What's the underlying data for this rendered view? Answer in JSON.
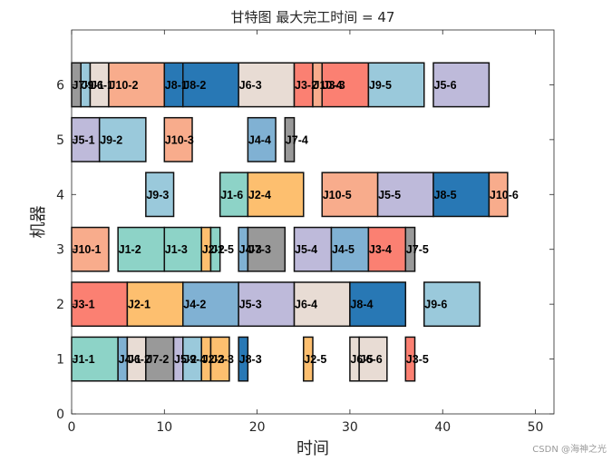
{
  "chart_data": {
    "type": "gantt",
    "title": "甘特图 最大完工时间 = 47",
    "xlabel": "时间",
    "ylabel": "机器",
    "xlim": [
      0,
      52
    ],
    "ylim": [
      0,
      7
    ],
    "xticks": [
      0,
      10,
      20,
      30,
      40,
      50
    ],
    "yticks": [
      0,
      1,
      2,
      3,
      4,
      5,
      6
    ],
    "grid": false,
    "job_colors": {
      "J1": "#8dd3c7",
      "J2": "#fdbf6f",
      "J3": "#fb8072",
      "J4": "#80b1d3",
      "J5": "#bebada",
      "J6": "#e8dcd4",
      "J7": "#999999",
      "J8": "#2878b5",
      "J9": "#9ac9db",
      "J10": "#f8ac8c"
    },
    "tasks": [
      {
        "machine": 6,
        "label": "J7-1",
        "job": "J7",
        "start": 0,
        "end": 1
      },
      {
        "machine": 6,
        "label": "J9-1",
        "job": "J9",
        "start": 1,
        "end": 2
      },
      {
        "machine": 6,
        "label": "J6-1",
        "job": "J6",
        "start": 2,
        "end": 4
      },
      {
        "machine": 6,
        "label": "J10-2",
        "job": "J10",
        "start": 4,
        "end": 10
      },
      {
        "machine": 6,
        "label": "J8-1",
        "job": "J8",
        "start": 10,
        "end": 12
      },
      {
        "machine": 6,
        "label": "J8-2",
        "job": "J8",
        "start": 12,
        "end": 18
      },
      {
        "machine": 6,
        "label": "J6-3",
        "job": "J6",
        "start": 18,
        "end": 24
      },
      {
        "machine": 6,
        "label": "J3-2",
        "job": "J3",
        "start": 24,
        "end": 26
      },
      {
        "machine": 6,
        "label": "J10-4",
        "job": "J10",
        "start": 26,
        "end": 27
      },
      {
        "machine": 6,
        "label": "J3-3",
        "job": "J3",
        "start": 27,
        "end": 32
      },
      {
        "machine": 6,
        "label": "J9-5",
        "job": "J9",
        "start": 32,
        "end": 38
      },
      {
        "machine": 6,
        "label": "J5-6",
        "job": "J5",
        "start": 39,
        "end": 45
      },
      {
        "machine": 5,
        "label": "J5-1",
        "job": "J5",
        "start": 0,
        "end": 3
      },
      {
        "machine": 5,
        "label": "J9-2",
        "job": "J9",
        "start": 3,
        "end": 8
      },
      {
        "machine": 5,
        "label": "J10-3",
        "job": "J10",
        "start": 10,
        "end": 13
      },
      {
        "machine": 5,
        "label": "J4-4",
        "job": "J4",
        "start": 19,
        "end": 22
      },
      {
        "machine": 5,
        "label": "J7-4",
        "job": "J7",
        "start": 23,
        "end": 24
      },
      {
        "machine": 4,
        "label": "J9-3",
        "job": "J9",
        "start": 8,
        "end": 11
      },
      {
        "machine": 4,
        "label": "J1-6",
        "job": "J1",
        "start": 16,
        "end": 19
      },
      {
        "machine": 4,
        "label": "J2-4",
        "job": "J2",
        "start": 19,
        "end": 25
      },
      {
        "machine": 4,
        "label": "J10-5",
        "job": "J10",
        "start": 27,
        "end": 33
      },
      {
        "machine": 4,
        "label": "J5-5",
        "job": "J5",
        "start": 33,
        "end": 39
      },
      {
        "machine": 4,
        "label": "J8-5",
        "job": "J8",
        "start": 39,
        "end": 45
      },
      {
        "machine": 4,
        "label": "J10-6",
        "job": "J10",
        "start": 45,
        "end": 47
      },
      {
        "machine": 3,
        "label": "J10-1",
        "job": "J10",
        "start": 0,
        "end": 4
      },
      {
        "machine": 3,
        "label": "J1-2",
        "job": "J1",
        "start": 5,
        "end": 10
      },
      {
        "machine": 3,
        "label": "J1-3",
        "job": "J1",
        "start": 10,
        "end": 14
      },
      {
        "machine": 3,
        "label": "J2-2",
        "job": "J2",
        "start": 14,
        "end": 15
      },
      {
        "machine": 3,
        "label": "J1-5",
        "job": "J1",
        "start": 15,
        "end": 16
      },
      {
        "machine": 3,
        "label": "J4-3",
        "job": "J4",
        "start": 18,
        "end": 19
      },
      {
        "machine": 3,
        "label": "J7-3",
        "job": "J7",
        "start": 19,
        "end": 23
      },
      {
        "machine": 3,
        "label": "J5-4",
        "job": "J5",
        "start": 24,
        "end": 28
      },
      {
        "machine": 3,
        "label": "J4-5",
        "job": "J4",
        "start": 28,
        "end": 32
      },
      {
        "machine": 3,
        "label": "J3-4",
        "job": "J3",
        "start": 32,
        "end": 36
      },
      {
        "machine": 3,
        "label": "J7-5",
        "job": "J7",
        "start": 36,
        "end": 37
      },
      {
        "machine": 2,
        "label": "J3-1",
        "job": "J3",
        "start": 0,
        "end": 6
      },
      {
        "machine": 2,
        "label": "J2-1",
        "job": "J2",
        "start": 6,
        "end": 12
      },
      {
        "machine": 2,
        "label": "J4-2",
        "job": "J4",
        "start": 12,
        "end": 18
      },
      {
        "machine": 2,
        "label": "J5-3",
        "job": "J5",
        "start": 18,
        "end": 24
      },
      {
        "machine": 2,
        "label": "J6-4",
        "job": "J6",
        "start": 24,
        "end": 30
      },
      {
        "machine": 2,
        "label": "J8-4",
        "job": "J8",
        "start": 30,
        "end": 36
      },
      {
        "machine": 2,
        "label": "J9-6",
        "job": "J9",
        "start": 38,
        "end": 44
      },
      {
        "machine": 1,
        "label": "J1-1",
        "job": "J1",
        "start": 0,
        "end": 5
      },
      {
        "machine": 1,
        "label": "J4-1",
        "job": "J4",
        "start": 5,
        "end": 6
      },
      {
        "machine": 1,
        "label": "J6-2",
        "job": "J6",
        "start": 6,
        "end": 8
      },
      {
        "machine": 1,
        "label": "J7-2",
        "job": "J7",
        "start": 8,
        "end": 11
      },
      {
        "machine": 1,
        "label": "J5-2",
        "job": "J5",
        "start": 11,
        "end": 12
      },
      {
        "machine": 1,
        "label": "J9-4",
        "job": "J9",
        "start": 12,
        "end": 14
      },
      {
        "machine": 1,
        "label": "J2-3",
        "job": "J2",
        "start": 14,
        "end": 15
      },
      {
        "machine": 1,
        "label": "J2-3",
        "job": "J2",
        "start": 15,
        "end": 17
      },
      {
        "machine": 1,
        "label": "J8-3",
        "job": "J8",
        "start": 18,
        "end": 19
      },
      {
        "machine": 1,
        "label": "J2-5",
        "job": "J2",
        "start": 25,
        "end": 26
      },
      {
        "machine": 1,
        "label": "J6-5",
        "job": "J6",
        "start": 30,
        "end": 31
      },
      {
        "machine": 1,
        "label": "J6-6",
        "job": "J6",
        "start": 31,
        "end": 34
      },
      {
        "machine": 1,
        "label": "J3-5",
        "job": "J3",
        "start": 36,
        "end": 37
      }
    ]
  },
  "watermark": "CSDN @海神之光"
}
